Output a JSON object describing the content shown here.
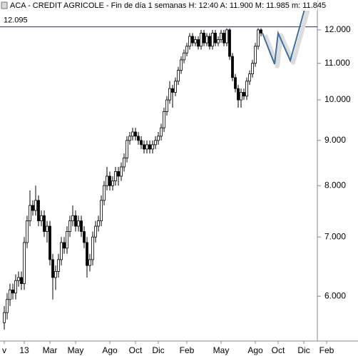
{
  "chart_data": {
    "type": "candlestick",
    "title": "ACA - CREDIT AGRICOLE - Fin de día 1 semanas H: 12:40 A: 11.900 M: 11.985 m: 11.845",
    "log_scale": true,
    "ylim": [
      5.34,
      12.97
    ],
    "yticks": [
      {
        "value": 6,
        "label": "6.000"
      },
      {
        "value": 7,
        "label": "7.000"
      },
      {
        "value": 8,
        "label": "8.000"
      },
      {
        "value": 9,
        "label": "9.000"
      },
      {
        "value": 10,
        "label": "10.000"
      },
      {
        "value": 11,
        "label": "11.000"
      },
      {
        "value": 12,
        "label": "12.000"
      }
    ],
    "categories": [
      "v",
      null,
      null,
      null,
      null,
      null,
      null,
      "13",
      null,
      null,
      null,
      null,
      null,
      null,
      null,
      null,
      "Mar",
      null,
      null,
      null,
      null,
      null,
      null,
      null,
      null,
      "May",
      null,
      null,
      null,
      null,
      null,
      null,
      null,
      null,
      null,
      null,
      null,
      "Ago",
      null,
      null,
      null,
      null,
      null,
      null,
      null,
      null,
      "Oct",
      null,
      null,
      null,
      null,
      null,
      null,
      null,
      "Dic",
      null,
      null,
      null,
      null,
      null,
      null,
      null,
      null,
      null,
      "Feb",
      null,
      null,
      null,
      null,
      null,
      null,
      null,
      null,
      null,
      null,
      null,
      "May",
      null,
      null,
      null,
      null,
      null,
      null,
      null,
      null,
      null,
      null,
      null,
      "Ago",
      null,
      null,
      null,
      null,
      null,
      null,
      null,
      "Oct",
      null,
      null,
      null,
      null,
      null,
      null,
      null,
      null,
      "Dic",
      null,
      null,
      null,
      null,
      null,
      null,
      null,
      "Feb"
    ],
    "open": [
      5.6,
      5.75,
      5.95,
      6.1,
      6.05,
      6.25,
      6.3,
      6.2,
      6.9,
      7.3,
      7.6,
      7.5,
      7.7,
      7.3,
      7.4,
      7.1,
      7.2,
      6.6,
      6.3,
      6.4,
      6.6,
      6.9,
      6.8,
      7.1,
      7.3,
      7.4,
      7.2,
      7.3,
      7.1,
      6.9,
      6.5,
      6.6,
      7.0,
      7.2,
      7.3,
      7.7,
      8.0,
      8.2,
      8.0,
      8.1,
      8.3,
      8.2,
      8.4,
      8.6,
      9.0,
      9.1,
      9.2,
      9.1,
      9.0,
      8.9,
      8.8,
      8.9,
      8.8,
      8.9,
      9.0,
      9.1,
      9.3,
      9.7,
      10.0,
      10.3,
      10.2,
      10.5,
      10.8,
      11.1,
      11.3,
      11.5,
      11.8,
      11.6,
      11.7,
      11.5,
      11.9,
      11.6,
      11.8,
      11.5,
      11.9,
      11.6,
      11.7,
      11.9,
      11.6,
      12.0,
      11.2,
      10.6,
      10.3,
      10.0,
      10.2,
      10.1,
      10.5,
      10.7,
      11.0,
      11.5,
      12.0,
      null,
      null,
      null,
      null,
      null,
      null,
      null,
      null,
      null,
      null,
      null,
      null,
      null,
      null,
      null,
      null,
      null,
      null,
      null,
      null,
      null,
      null,
      null
    ],
    "high": [
      5.85,
      6.05,
      6.2,
      6.2,
      6.35,
      6.4,
      6.4,
      7.0,
      7.4,
      7.9,
      7.7,
      8.0,
      7.8,
      7.5,
      7.5,
      7.3,
      7.3,
      6.7,
      6.5,
      6.7,
      7.0,
      7.0,
      7.2,
      7.4,
      7.6,
      7.5,
      7.4,
      7.4,
      7.2,
      7.0,
      6.7,
      7.1,
      7.3,
      7.4,
      7.8,
      8.1,
      8.4,
      8.3,
      8.2,
      8.4,
      8.4,
      8.5,
      8.7,
      9.1,
      9.2,
      9.3,
      9.3,
      9.2,
      9.1,
      9.0,
      9.0,
      9.0,
      9.0,
      9.1,
      9.2,
      9.4,
      9.8,
      10.1,
      10.5,
      10.4,
      10.6,
      10.9,
      11.2,
      11.4,
      11.6,
      11.9,
      11.9,
      11.8,
      11.8,
      12.0,
      12.0,
      11.9,
      11.9,
      12.0,
      12.0,
      11.8,
      12.0,
      12.0,
      12.05,
      12.05,
      11.3,
      10.7,
      10.4,
      10.3,
      10.3,
      10.6,
      10.8,
      11.1,
      11.6,
      12.05,
      12.05,
      null,
      null,
      null,
      null,
      null,
      null,
      null,
      null,
      null,
      null,
      null,
      null,
      null,
      null,
      null,
      null,
      null,
      null,
      null,
      null,
      null,
      null,
      null
    ],
    "low": [
      5.5,
      5.65,
      5.85,
      5.95,
      5.95,
      6.15,
      6.1,
      6.1,
      6.8,
      7.2,
      7.4,
      7.4,
      7.2,
      7.2,
      7.0,
      6.9,
      6.5,
      5.95,
      6.1,
      6.3,
      6.5,
      6.7,
      6.7,
      7.0,
      7.2,
      7.1,
      7.1,
      7.0,
      6.8,
      6.3,
      6.4,
      6.5,
      6.9,
      7.1,
      7.2,
      7.6,
      7.9,
      7.9,
      7.9,
      8.0,
      8.0,
      8.1,
      8.3,
      8.5,
      8.9,
      9.0,
      9.0,
      8.9,
      8.8,
      8.7,
      8.7,
      8.7,
      8.7,
      8.8,
      8.9,
      9.0,
      9.2,
      9.6,
      9.9,
      9.8,
      10.1,
      10.4,
      10.7,
      11.0,
      11.2,
      11.4,
      11.5,
      11.5,
      11.4,
      11.4,
      11.5,
      11.5,
      11.4,
      11.4,
      11.5,
      11.5,
      11.6,
      11.5,
      11.5,
      11.1,
      10.5,
      10.2,
      9.8,
      9.8,
      10.0,
      10.0,
      10.4,
      10.6,
      10.9,
      11.4,
      11.8,
      null,
      null,
      null,
      null,
      null,
      null,
      null,
      null,
      null,
      null,
      null,
      null,
      null,
      null,
      null,
      null,
      null,
      null,
      null,
      null,
      null,
      null,
      null
    ],
    "close": [
      5.75,
      5.95,
      6.1,
      6.05,
      6.25,
      6.3,
      6.2,
      6.9,
      7.3,
      7.6,
      7.5,
      7.7,
      7.3,
      7.4,
      7.1,
      7.2,
      6.6,
      6.3,
      6.4,
      6.6,
      6.9,
      6.8,
      7.1,
      7.3,
      7.4,
      7.2,
      7.3,
      7.1,
      6.9,
      6.5,
      6.6,
      7.0,
      7.2,
      7.3,
      7.7,
      8.0,
      8.2,
      8.0,
      8.1,
      8.3,
      8.2,
      8.4,
      8.6,
      9.0,
      9.1,
      9.2,
      9.1,
      9.0,
      8.9,
      8.8,
      8.9,
      8.8,
      8.9,
      9.0,
      9.1,
      9.3,
      9.7,
      10.0,
      10.3,
      10.2,
      10.5,
      10.8,
      11.1,
      11.3,
      11.5,
      11.8,
      11.6,
      11.7,
      11.5,
      11.9,
      11.6,
      11.8,
      11.5,
      11.9,
      11.6,
      11.7,
      11.9,
      11.6,
      12.0,
      11.2,
      10.6,
      10.3,
      10.0,
      10.2,
      10.1,
      10.5,
      10.7,
      11.0,
      11.5,
      12.0,
      11.9,
      null,
      null,
      null,
      null,
      null,
      null,
      null,
      null,
      null,
      null,
      null,
      null,
      null,
      null,
      null,
      null,
      null,
      null,
      null,
      null,
      null,
      null,
      null
    ],
    "up_color": "#ffffff",
    "down_color": "#000000",
    "hline": {
      "value": 12.095,
      "label": "12.095",
      "color": "#1f1fbf"
    },
    "trend_line": {
      "x": [
        90.5,
        94.75,
        96,
        100.25,
        106
      ],
      "values": [
        11.9,
        10.98,
        11.9,
        11.08,
        12.9
      ],
      "color": "#3a6fa0"
    }
  }
}
